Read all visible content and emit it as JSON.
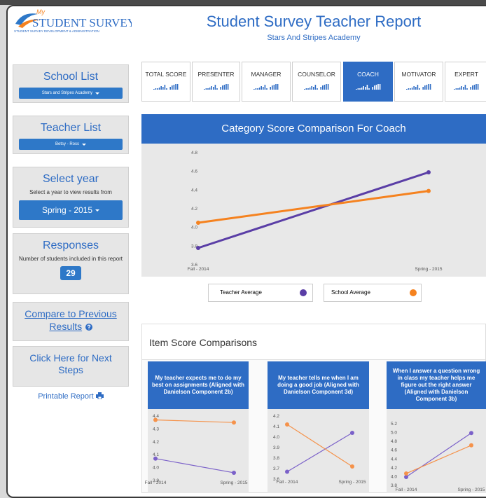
{
  "header": {
    "logo_my": "My",
    "logo_name": "STUDENT SURVEY",
    "logo_tagline": "STUDENT SURVEY DEVELOPMENT & ADMINISTRATION",
    "title": "Student Survey Teacher Report",
    "subtitle": "Stars And Stripes Academy"
  },
  "sidebar": {
    "school_list": {
      "title": "School List",
      "button": "Stars and Stripes Academy"
    },
    "teacher_list": {
      "title": "Teacher List",
      "button": "Betsy - Ross"
    },
    "select_year": {
      "title": "Select year",
      "text": "Select a year to view results from",
      "button": "Spring - 2015"
    },
    "responses": {
      "title": "Responses",
      "text": "Number of students included in this report",
      "count": "29"
    },
    "compare": "Compare to Previous Results",
    "next_steps": "Click Here for Next Steps",
    "printable": "Printable Report"
  },
  "tabs": [
    "TOTAL SCORE",
    "PRESENTER",
    "MANAGER",
    "COUNSELOR",
    "COACH",
    "MOTIVATOR",
    "EXPERT"
  ],
  "active_tab": "COACH",
  "item_section_title": "Item Score Comparisons",
  "chart_data": [
    {
      "type": "line",
      "title": "Category Score Comparison For Coach",
      "categories": [
        "Fall - 2014",
        "Spring - 2015"
      ],
      "ylim": [
        3.6,
        4.8
      ],
      "yticks": [
        3.6,
        3.8,
        {
          "value": 4.0,
          "label": "4.0"
        },
        4.2,
        4.4,
        4.6,
        4.8
      ],
      "series": [
        {
          "name": "Teacher Average",
          "color": "#5a3ea6",
          "values": [
            3.78,
            4.59
          ]
        },
        {
          "name": "School Average",
          "color": "#f5821f",
          "values": [
            4.05,
            4.39
          ]
        }
      ]
    },
    {
      "type": "line",
      "title": "My teacher expects me to do my best on assignments (Aligned with Danielson Component 2b)",
      "categories": [
        "Fall - 2014",
        "Spring - 2015"
      ],
      "ylim": [
        3.9,
        4.4
      ],
      "yticks": [
        3.9,
        {
          "value": 4.0,
          "label": "4.0"
        },
        4.1,
        4.2,
        4.3,
        4.4
      ],
      "series": [
        {
          "color": "#7b61c9",
          "values": [
            4.07,
            3.96
          ]
        },
        {
          "color": "#f5924a",
          "values": [
            4.37,
            4.35
          ]
        }
      ]
    },
    {
      "type": "line",
      "title": "My teacher tells me when I am doing a good job (Aligned with Danielson Component 3d)",
      "categories": [
        "Fall - 2014",
        "Spring - 2015"
      ],
      "ylim": [
        3.6,
        4.2
      ],
      "yticks": [
        3.6,
        3.7,
        3.8,
        3.9,
        {
          "value": 4.0,
          "label": "4.0"
        },
        4.1,
        4.2
      ],
      "series": [
        {
          "color": "#7b61c9",
          "values": [
            3.67,
            4.04
          ]
        },
        {
          "color": "#f5924a",
          "values": [
            4.12,
            3.72
          ]
        }
      ]
    },
    {
      "type": "line",
      "title": "When I answer a question wrong in class my teacher helps me figure out the right answer (Aligned with Danielson Component 3b)",
      "categories": [
        "Fall - 2014",
        "Spring - 2015"
      ],
      "ylim": [
        3.8,
        5.2
      ],
      "yticks": [
        3.8,
        {
          "value": 4.0,
          "label": "4.0"
        },
        4.2,
        4.4,
        4.6,
        4.8,
        {
          "value": 5.0,
          "label": "5.0"
        },
        5.2
      ],
      "series": [
        {
          "color": "#7b61c9",
          "values": [
            3.99,
            4.99
          ]
        },
        {
          "color": "#f5924a",
          "values": [
            4.07,
            4.71
          ]
        }
      ]
    }
  ]
}
